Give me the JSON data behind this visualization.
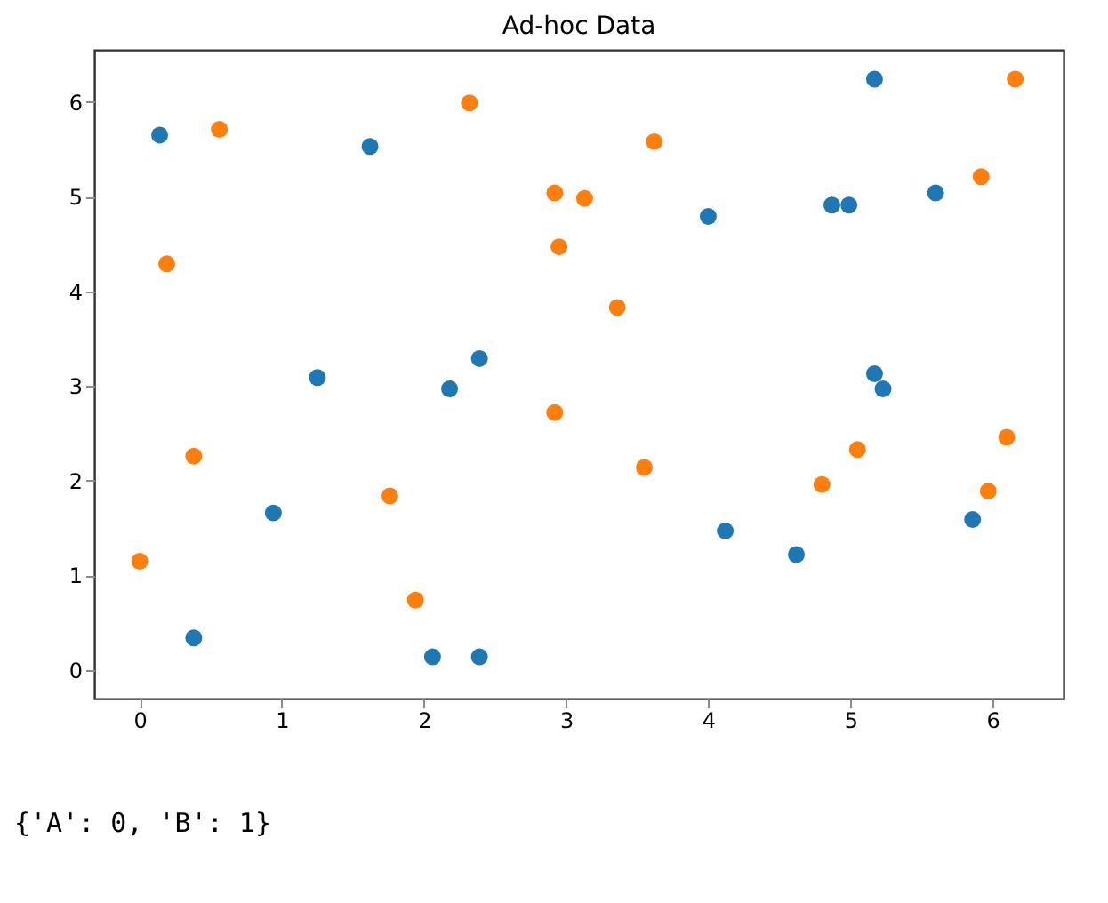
{
  "chart_data": {
    "type": "scatter",
    "title": "Ad-hoc Data",
    "series": [
      {
        "color": "#1f77b4",
        "x": [
          0.14,
          0.38,
          0.94,
          1.25,
          1.62,
          2.06,
          2.18,
          2.39,
          2.39,
          4.0,
          4.12,
          4.62,
          4.87,
          4.99,
          5.17,
          5.17,
          5.23,
          5.6,
          5.86
        ],
        "values": [
          5.65,
          0.34,
          1.66,
          3.09,
          5.53,
          0.14,
          2.97,
          3.29,
          0.14,
          4.79,
          1.47,
          1.22,
          4.91,
          4.91,
          6.24,
          3.13,
          2.97,
          5.04,
          1.59
        ]
      },
      {
        "color": "#ff7f0e",
        "x": [
          0.0,
          0.19,
          0.38,
          0.56,
          1.76,
          1.94,
          2.32,
          2.92,
          2.92,
          2.95,
          3.13,
          3.36,
          3.55,
          3.62,
          4.8,
          5.05,
          5.92,
          5.97,
          6.1,
          6.16
        ],
        "values": [
          1.15,
          4.29,
          2.26,
          5.71,
          1.84,
          0.74,
          5.99,
          5.04,
          2.72,
          4.47,
          4.98,
          3.83,
          2.14,
          5.58,
          1.96,
          2.33,
          5.21,
          1.89,
          2.46,
          6.24
        ]
      }
    ],
    "xlim": [
      -0.32,
      6.5
    ],
    "ylim": [
      -0.3,
      6.55
    ],
    "xticks": [
      0,
      1,
      2,
      3,
      4,
      5,
      6
    ],
    "yticks": [
      0,
      1,
      2,
      3,
      4,
      5,
      6
    ],
    "grid": false,
    "legend": false,
    "marker": "circle",
    "annotations": [
      "{'A': 0, 'B': 1}"
    ]
  }
}
